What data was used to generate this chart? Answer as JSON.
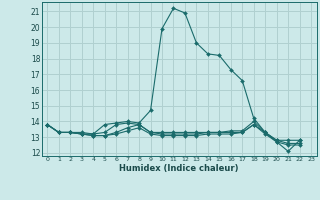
{
  "xlabel": "Humidex (Indice chaleur)",
  "bg_color": "#cce9e9",
  "grid_color": "#b0d0d0",
  "line_color": "#1a6b6b",
  "xlim": [
    -0.5,
    23.5
  ],
  "ylim": [
    11.8,
    21.6
  ],
  "xticks": [
    0,
    1,
    2,
    3,
    4,
    5,
    6,
    7,
    8,
    9,
    10,
    11,
    12,
    13,
    14,
    15,
    16,
    17,
    18,
    19,
    20,
    21,
    22,
    23
  ],
  "yticks": [
    12,
    13,
    14,
    15,
    16,
    17,
    18,
    19,
    20,
    21
  ],
  "series": [
    {
      "x": [
        0,
        1,
        2,
        3,
        4,
        5,
        6,
        7,
        8,
        9,
        10,
        11,
        12,
        13,
        14,
        15,
        16,
        17,
        18,
        19,
        20,
        21,
        22
      ],
      "y": [
        13.8,
        13.3,
        13.3,
        13.3,
        13.2,
        13.8,
        13.9,
        14.0,
        13.9,
        14.7,
        19.9,
        21.2,
        20.9,
        19.0,
        18.3,
        18.2,
        17.3,
        16.6,
        14.2,
        13.3,
        12.7,
        12.1,
        12.8
      ]
    },
    {
      "x": [
        0,
        1,
        2,
        3,
        4,
        5,
        6,
        7,
        8,
        9,
        10,
        11,
        12,
        13,
        14,
        15,
        16,
        17,
        18,
        19,
        20,
        21,
        22
      ],
      "y": [
        13.8,
        13.3,
        13.3,
        13.2,
        13.2,
        13.3,
        13.8,
        13.9,
        13.8,
        13.3,
        13.3,
        13.3,
        13.3,
        13.3,
        13.3,
        13.3,
        13.3,
        13.3,
        13.8,
        13.3,
        12.8,
        12.8,
        12.8
      ]
    },
    {
      "x": [
        0,
        1,
        2,
        3,
        4,
        5,
        6,
        7,
        8,
        9,
        10,
        11,
        12,
        13,
        14,
        15,
        16,
        17,
        18,
        19,
        20,
        21,
        22
      ],
      "y": [
        13.8,
        13.3,
        13.3,
        13.2,
        13.1,
        13.1,
        13.3,
        13.6,
        13.8,
        13.3,
        13.2,
        13.2,
        13.2,
        13.2,
        13.3,
        13.3,
        13.4,
        13.4,
        14.0,
        13.3,
        12.8,
        12.6,
        12.6
      ]
    },
    {
      "x": [
        0,
        1,
        2,
        3,
        4,
        5,
        6,
        7,
        8,
        9,
        10,
        11,
        12,
        13,
        14,
        15,
        16,
        17,
        18,
        19,
        20,
        21,
        22
      ],
      "y": [
        13.8,
        13.3,
        13.3,
        13.2,
        13.1,
        13.1,
        13.2,
        13.4,
        13.6,
        13.2,
        13.1,
        13.1,
        13.1,
        13.1,
        13.2,
        13.2,
        13.2,
        13.3,
        13.8,
        13.2,
        12.7,
        12.5,
        12.5
      ]
    }
  ]
}
